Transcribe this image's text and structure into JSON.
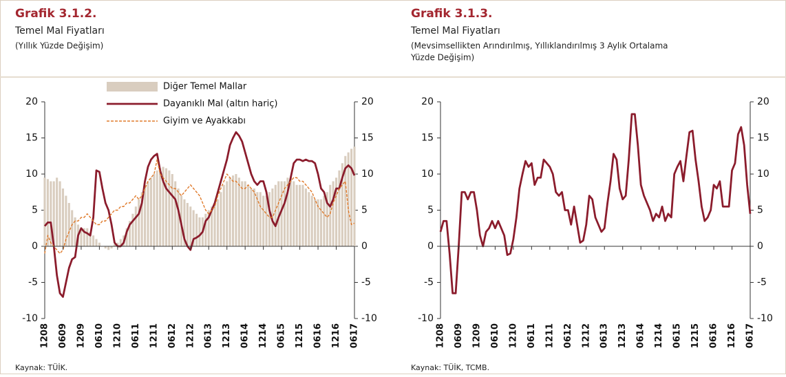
{
  "chart_data": [
    {
      "type": "combo",
      "title": "Grafik 3.1.2.",
      "subtitle": "Temel Mal Fiyatları",
      "notes": [
        "(Yıllık Yüzde Değişim)"
      ],
      "source": "Kaynak: TÜİK.",
      "categories": [
        "1208",
        null,
        null,
        null,
        null,
        null,
        "0609",
        null,
        null,
        null,
        null,
        null,
        "1209",
        null,
        null,
        null,
        null,
        null,
        "0610",
        null,
        null,
        null,
        null,
        null,
        "1210",
        null,
        null,
        null,
        null,
        null,
        "0611",
        null,
        null,
        null,
        null,
        null,
        "1211",
        null,
        null,
        null,
        null,
        null,
        "0612",
        null,
        null,
        null,
        null,
        null,
        "1212",
        null,
        null,
        null,
        null,
        null,
        "0613",
        null,
        null,
        null,
        null,
        null,
        "1213",
        null,
        null,
        null,
        null,
        null,
        "0614",
        null,
        null,
        null,
        null,
        null,
        "1214",
        null,
        null,
        null,
        null,
        null,
        "0615",
        null,
        null,
        null,
        null,
        null,
        "1215",
        null,
        null,
        null,
        null,
        null,
        "0616",
        null,
        null,
        null,
        null,
        null,
        "1216",
        null,
        null,
        null,
        null,
        null,
        "0617"
      ],
      "ylim": [
        -10,
        20
      ],
      "yticks": [
        20,
        15,
        10,
        5,
        0,
        -5,
        -10
      ],
      "legend": "top",
      "series": [
        {
          "name": "Diğer Temel Mallar",
          "type": "bar",
          "color": "#d9cdbf",
          "values": [
            9.5,
            9.3,
            9,
            9,
            9.5,
            9,
            8,
            7,
            6,
            5,
            4,
            3,
            2.5,
            2.5,
            2.5,
            2,
            1.5,
            1,
            0.5,
            0,
            -0.3,
            -0.5,
            -0.3,
            0.3,
            0.5,
            1,
            1.5,
            2.5,
            3.5,
            4.5,
            5.5,
            6.5,
            7.5,
            8.5,
            9,
            9.5,
            10,
            10.5,
            10.8,
            11,
            10.8,
            10.5,
            10,
            9,
            8,
            7,
            6.5,
            6,
            5.5,
            5,
            4.5,
            4,
            4,
            4.5,
            5,
            5.5,
            6,
            6.5,
            7.5,
            8.5,
            9,
            9.5,
            9.8,
            10,
            9.5,
            9,
            9,
            8.5,
            8,
            8,
            7.5,
            7.5,
            7,
            7,
            7.5,
            8,
            8.5,
            9,
            9,
            9,
            9.5,
            9.5,
            9,
            8.5,
            8.5,
            8.5,
            8,
            7.5,
            7,
            6.5,
            6.5,
            6.5,
            7,
            7.5,
            8.5,
            9,
            9.5,
            10.5,
            11.5,
            12.5,
            13,
            13.5,
            13.8
          ]
        },
        {
          "name": "Dayanıklı Mal (altın hariç)",
          "type": "line",
          "color": "#8b1c2c",
          "values": [
            2.8,
            3.3,
            3.3,
            0,
            -4,
            -6.5,
            -7,
            -5,
            -3,
            -1.8,
            -1.5,
            1.5,
            2.5,
            2,
            1.8,
            1.5,
            4,
            10.5,
            10.3,
            8,
            6,
            5,
            3,
            0.5,
            0,
            0,
            0.5,
            2,
            3,
            3.5,
            4,
            4.5,
            6,
            9,
            11,
            12,
            12.5,
            12.8,
            10.5,
            9,
            8,
            7.5,
            7,
            6.5,
            5,
            3,
            1,
            0,
            -0.5,
            1,
            1.2,
            1.5,
            2,
            3.5,
            4,
            5,
            6,
            7.5,
            9,
            10.5,
            12,
            14,
            15,
            15.8,
            15.3,
            14.5,
            13,
            11.5,
            10,
            9,
            8.5,
            9,
            9,
            7.5,
            5,
            3.5,
            2.8,
            4,
            5,
            6,
            7.5,
            9.5,
            11.5,
            12,
            12,
            11.8,
            12,
            11.8,
            11.8,
            11.5,
            10,
            8,
            7.5,
            6,
            5.5,
            6.5,
            8,
            8,
            9.5,
            10.8,
            11.2,
            10.8,
            9.8
          ]
        },
        {
          "name": "Giyim ve Ayakkabı",
          "type": "line",
          "dash": true,
          "color": "#e07b2c",
          "values": [
            -1,
            1.5,
            0.5,
            0,
            -0.5,
            -1,
            -0.5,
            1,
            2,
            3,
            3.5,
            3.5,
            4,
            4,
            4.5,
            4,
            3.5,
            3,
            3,
            3.5,
            3.5,
            4,
            4.5,
            5,
            5,
            5.5,
            5.5,
            6,
            6,
            6.5,
            7,
            6.5,
            7,
            8,
            9,
            9.5,
            10,
            12,
            10,
            9.5,
            9,
            8.5,
            8,
            8,
            7.5,
            7,
            7.5,
            8,
            8.5,
            8,
            7.5,
            7,
            6,
            5,
            4.5,
            5,
            5.5,
            7,
            8,
            9,
            10,
            9.5,
            9,
            9,
            8.5,
            8,
            8,
            8.5,
            8,
            7.5,
            6.5,
            5.5,
            5,
            4.5,
            4,
            4,
            5,
            6,
            7,
            8,
            8.5,
            9,
            9.5,
            9.5,
            9,
            9,
            8.5,
            8,
            7.5,
            6.5,
            5.5,
            5,
            4.5,
            4,
            4.5,
            6,
            7,
            8,
            8.5,
            9,
            5,
            3,
            3.2
          ]
        }
      ]
    },
    {
      "type": "line",
      "title": "Grafik 3.1.3.",
      "subtitle": "Temel Mal Fiyatları",
      "notes": [
        "(Mevsimsellikten Arındırılmış, Yıllıklandırılmış 3 Aylık Ortalama",
        "Yüzde Değişim)"
      ],
      "source": "Kaynak: TÜİK, TCMB.",
      "categories": [
        "1208",
        null,
        null,
        null,
        null,
        null,
        "0609",
        null,
        null,
        null,
        null,
        null,
        "1209",
        null,
        null,
        null,
        null,
        null,
        "0610",
        null,
        null,
        null,
        null,
        null,
        "1210",
        null,
        null,
        null,
        null,
        null,
        "0611",
        null,
        null,
        null,
        null,
        null,
        "1211",
        null,
        null,
        null,
        null,
        null,
        "0612",
        null,
        null,
        null,
        null,
        null,
        "1212",
        null,
        null,
        null,
        null,
        null,
        "0613",
        null,
        null,
        null,
        null,
        null,
        "1213",
        null,
        null,
        null,
        null,
        null,
        "0614",
        null,
        null,
        null,
        null,
        null,
        "1214",
        null,
        null,
        null,
        null,
        null,
        "0615",
        null,
        null,
        null,
        null,
        null,
        "1215",
        null,
        null,
        null,
        null,
        null,
        "0616",
        null,
        null,
        null,
        null,
        null,
        "1216",
        null,
        null,
        null,
        null,
        null,
        "0617"
      ],
      "ylim": [
        -10,
        20
      ],
      "yticks": [
        20,
        15,
        10,
        5,
        0,
        -5,
        -10
      ],
      "color": "#8b1c2c",
      "values": [
        2,
        3.5,
        3.5,
        -1,
        -6.5,
        -6.5,
        0,
        7.5,
        7.5,
        6.5,
        7.5,
        7.5,
        5,
        1.5,
        0,
        2,
        2.5,
        3.5,
        2.5,
        3.5,
        2.5,
        1.5,
        -1.2,
        -1,
        1,
        4,
        8,
        10,
        11.8,
        11,
        11.5,
        8.5,
        9.5,
        9.5,
        12,
        11.5,
        11,
        10,
        7.5,
        7,
        7.5,
        5,
        5,
        3,
        5.5,
        3,
        0.5,
        0.8,
        3,
        7,
        6.5,
        4,
        3,
        2,
        2.5,
        6,
        9,
        12.8,
        12,
        8,
        6.5,
        7,
        12,
        18.3,
        18.3,
        14,
        8.5,
        7,
        6,
        5,
        3.5,
        4.5,
        4,
        5.5,
        3.5,
        4.5,
        4,
        10,
        11,
        11.8,
        9,
        12.5,
        15.8,
        16,
        12,
        9,
        5.5,
        3.5,
        4,
        5,
        8.5,
        8,
        9,
        5.5,
        5.5,
        5.5,
        10.5,
        11.5,
        15.5,
        16.5,
        14,
        8.5,
        4.5
      ]
    }
  ]
}
